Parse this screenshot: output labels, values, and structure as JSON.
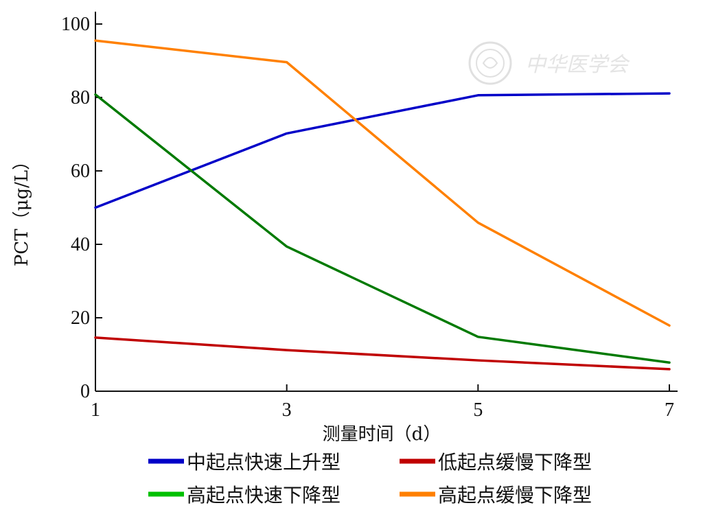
{
  "chart_data": {
    "type": "line",
    "title": "",
    "xlabel": "测量时间（d）",
    "ylabel": "PCT（μg/L）",
    "x": [
      1,
      3,
      5,
      7
    ],
    "xticks": [
      "1",
      "3",
      "5",
      "7"
    ],
    "yticks": [
      "0",
      "20",
      "40",
      "60",
      "80",
      "100"
    ],
    "xlim": [
      1,
      7
    ],
    "ylim": [
      0,
      100
    ],
    "grid": false,
    "legend_position": "bottom",
    "series": [
      {
        "name": "中起点快速上升型",
        "color": "#0000c8",
        "values": [
          50,
          70.2,
          80.6,
          81.1
        ]
      },
      {
        "name": "低起点缓慢下降型",
        "color": "#c00000",
        "values": [
          14.6,
          11.2,
          8.4,
          6
        ]
      },
      {
        "name": "高起点快速下降型",
        "color": "#007a00",
        "legend_color": "#00c000",
        "values": [
          80.8,
          39.4,
          14.8,
          7.8
        ]
      },
      {
        "name": "高起点缓慢下降型",
        "color": "#ff8000",
        "values": [
          95.5,
          89.6,
          45.9,
          17.9
        ]
      }
    ]
  },
  "watermark": {
    "text": "中华医学会",
    "icon": "seal-emblem-icon"
  }
}
